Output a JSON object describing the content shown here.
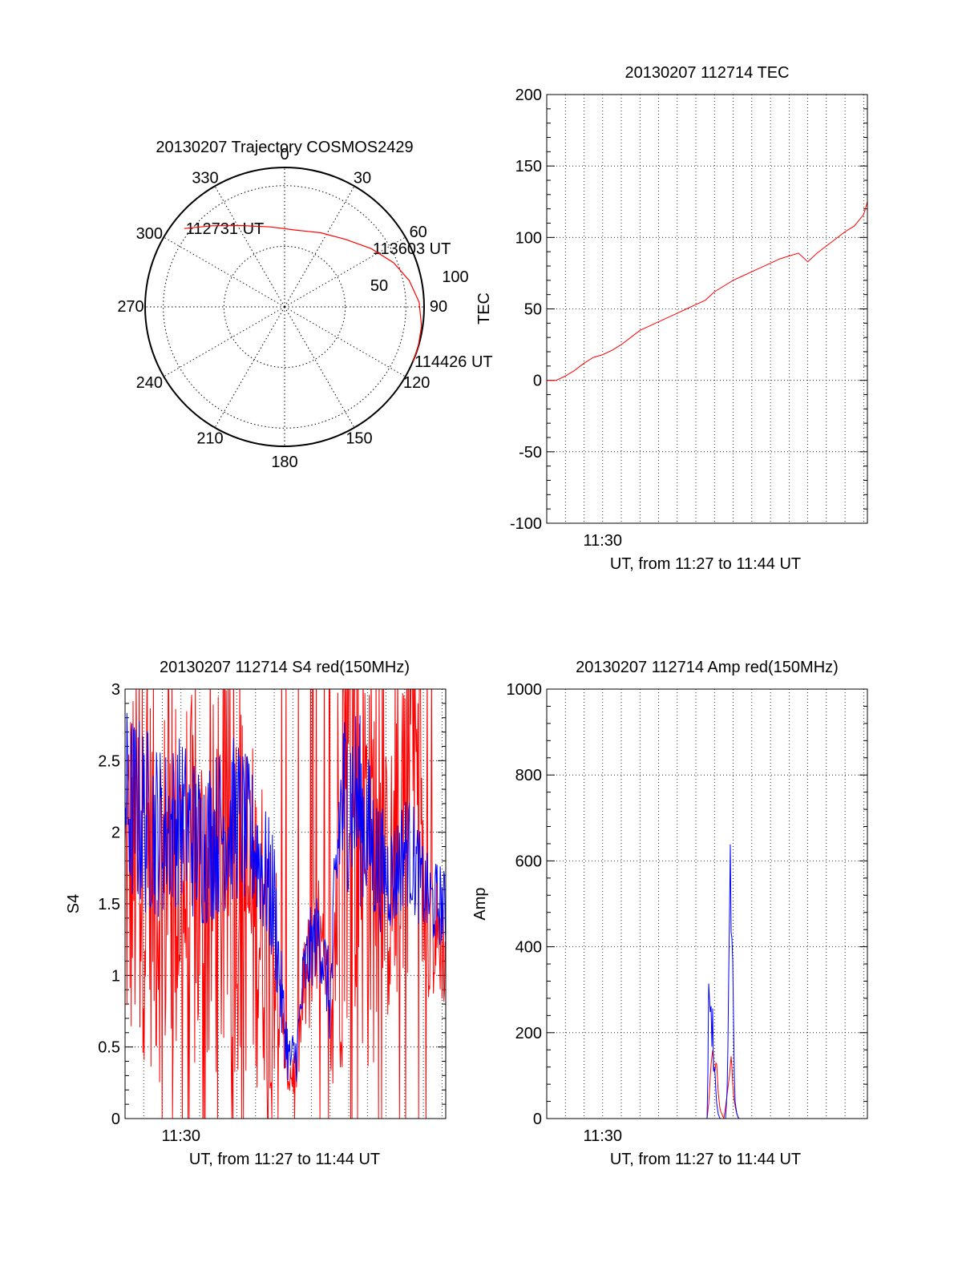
{
  "colors": {
    "series_red": "#ff0000",
    "series_blue": "#0000ff",
    "axis": "#000000"
  },
  "chart_data": [
    {
      "type": "polar",
      "title": "20130207 Trajectory COSMOS2429",
      "azimuth_labels": [
        "0",
        "30",
        "60",
        "90",
        "120",
        "150",
        "180",
        "210",
        "240",
        "270",
        "300",
        "330"
      ],
      "radius_labels": [
        "50",
        "100"
      ],
      "elevation_rings": [
        50,
        100
      ],
      "trajectory_color": "#ff0000",
      "trajectory": [
        {
          "az": 308,
          "r": 105
        },
        {
          "az": 318,
          "r": 90
        },
        {
          "az": 332,
          "r": 76
        },
        {
          "az": 350,
          "r": 67
        },
        {
          "az": 8,
          "r": 64
        },
        {
          "az": 26,
          "r": 68
        },
        {
          "az": 42,
          "r": 75
        },
        {
          "az": 56,
          "r": 86
        },
        {
          "az": 68,
          "r": 97
        },
        {
          "az": 78,
          "r": 105
        },
        {
          "az": 88,
          "r": 111
        },
        {
          "az": 98,
          "r": 114
        },
        {
          "az": 107,
          "r": 115
        },
        {
          "az": 113,
          "r": 115
        }
      ],
      "annotations": [
        {
          "text": "112731 UT",
          "az": 308,
          "r": 105
        },
        {
          "text": "113603 UT",
          "az": 56,
          "r": 86
        },
        {
          "text": "114426 UT",
          "az": 113,
          "r": 115
        }
      ]
    },
    {
      "type": "line",
      "title": "20130207 112714 TEC",
      "ylabel": "TEC",
      "xlabel": "UT, from 11:27 to 11:44 UT",
      "xlim": [
        0,
        17.2
      ],
      "ylim": [
        -100,
        200
      ],
      "yticks": [
        "-100",
        "-50",
        "0",
        "50",
        "100",
        "150",
        "200"
      ],
      "yticks_values": [
        -100,
        -50,
        0,
        50,
        100,
        150,
        200
      ],
      "xtick_labels": [
        {
          "label": "11:30",
          "at": 3
        }
      ],
      "grid": true,
      "series": [
        {
          "color": "#ff0000",
          "x": [
            0,
            0.5,
            1,
            1.5,
            2,
            2.5,
            3,
            3.5,
            4,
            4.5,
            5,
            5.5,
            6,
            6.5,
            7,
            7.5,
            8,
            8.5,
            9,
            9.5,
            10,
            10.5,
            11,
            11.5,
            12,
            12.5,
            13,
            13.5,
            14,
            14.5,
            15,
            15.5,
            16,
            16.5,
            17,
            17.2
          ],
          "y": [
            0,
            0,
            3,
            7,
            12,
            16,
            18,
            21,
            25,
            30,
            35,
            38,
            41,
            44,
            47,
            50,
            53,
            56,
            62,
            66,
            70,
            73,
            76,
            79,
            82,
            85,
            87,
            89,
            83,
            89,
            94,
            99,
            104,
            108,
            116,
            125
          ]
        }
      ]
    },
    {
      "type": "line",
      "title": "20130207 112714 S4 red(150MHz)",
      "ylabel": "S4",
      "xlabel": "UT, from 11:27 to 11:44 UT",
      "xlim": [
        0,
        17.2
      ],
      "ylim": [
        0,
        3
      ],
      "yticks": [
        "0",
        "0.5",
        "1",
        "1.5",
        "2",
        "2.5",
        "3"
      ],
      "yticks_values": [
        0,
        0.5,
        1,
        1.5,
        2,
        2.5,
        3
      ],
      "xtick_labels": [
        {
          "label": "11:30",
          "at": 3
        }
      ],
      "grid": true,
      "series": [
        {
          "color": "#ff0000",
          "noise": true,
          "x": [
            0,
            1,
            2,
            3,
            4,
            5,
            6,
            7,
            8,
            8.4,
            8.8,
            9.2,
            9.6,
            10,
            10.4,
            10.8,
            11,
            11.5,
            12,
            12.5,
            13,
            13.5,
            14,
            14.5,
            15,
            15.5,
            16,
            16.5,
            17,
            17.2
          ],
          "y": [
            1.7,
            1.8,
            1.6,
            1.7,
            1.5,
            1.6,
            1.7,
            1.4,
            1.2,
            0.6,
            0.3,
            0.35,
            0.9,
            1.1,
            1.2,
            0.9,
            0.7,
            2.0,
            2.4,
            2.3,
            2.0,
            1.8,
            1.6,
            1.7,
            2.5,
            2.8,
            1.5,
            1.3,
            1.2,
            1.1
          ],
          "amp": [
            1.4,
            1.4,
            1.4,
            1.4,
            1.4,
            1.4,
            1.4,
            1.2,
            1.0,
            0.3,
            0.2,
            0.2,
            0.4,
            0.5,
            0.5,
            0.4,
            0.5,
            1.8,
            1.8,
            1.8,
            1.8,
            1.4,
            1.0,
            1.0,
            1.6,
            1.6,
            0.6,
            0.5,
            0.4,
            0.4
          ]
        },
        {
          "color": "#0000ff",
          "noise": true,
          "x": [
            0,
            1,
            2,
            3,
            4,
            5,
            6,
            7,
            8,
            8.4,
            8.8,
            9.2,
            9.6,
            10,
            10.4,
            10.8,
            11,
            11.5,
            12,
            12.5,
            13,
            13.5,
            14,
            14.5,
            15,
            15.5,
            16,
            16.5,
            17,
            17.2
          ],
          "y": [
            2.2,
            2.1,
            2.0,
            2.1,
            1.9,
            2.0,
            2.1,
            1.9,
            1.5,
            0.8,
            0.4,
            0.45,
            1.0,
            1.2,
            1.3,
            1.0,
            0.8,
            2.1,
            2.3,
            2.2,
            2.0,
            1.8,
            1.7,
            1.7,
            1.9,
            1.8,
            1.6,
            1.5,
            1.5,
            1.4
          ],
          "amp": [
            0.7,
            0.7,
            0.6,
            0.6,
            0.6,
            0.6,
            0.6,
            0.5,
            0.5,
            0.3,
            0.2,
            0.2,
            0.3,
            0.3,
            0.3,
            0.3,
            0.3,
            0.7,
            0.7,
            0.7,
            0.6,
            0.5,
            0.4,
            0.4,
            0.4,
            0.4,
            0.3,
            0.3,
            0.3,
            0.3
          ]
        }
      ]
    },
    {
      "type": "line",
      "title": "20130207 112714 Amp red(150MHz)",
      "ylabel": "Amp",
      "xlabel": "UT, from 11:27 to 11:44 UT",
      "xlim": [
        0,
        17.2
      ],
      "ylim": [
        0,
        1000
      ],
      "yticks": [
        "0",
        "200",
        "400",
        "600",
        "800",
        "1000"
      ],
      "yticks_values": [
        0,
        200,
        400,
        600,
        800,
        1000
      ],
      "xtick_labels": [
        {
          "label": "11:30",
          "at": 3
        }
      ],
      "grid": true,
      "series": [
        {
          "color": "#ff0000",
          "x": [
            0,
            8.6,
            8.7,
            8.8,
            8.9,
            9.0,
            9.1,
            9.2,
            9.3,
            9.5,
            9.6,
            9.8,
            9.9,
            10.0,
            10.1,
            10.2,
            10.3,
            10.5,
            17.2
          ],
          "y": [
            0,
            0,
            40,
            120,
            160,
            100,
            140,
            60,
            20,
            0,
            30,
            100,
            150,
            60,
            30,
            10,
            0,
            0,
            0
          ]
        },
        {
          "color": "#0000ff",
          "x": [
            0,
            8.6,
            8.65,
            8.7,
            8.75,
            8.8,
            8.85,
            8.9,
            8.95,
            9.0,
            9.1,
            9.2,
            9.3,
            9.4,
            9.5,
            9.6,
            9.7,
            9.75,
            9.8,
            9.85,
            9.9,
            9.95,
            10.0,
            10.05,
            10.1,
            10.2,
            10.3,
            10.5,
            17.2
          ],
          "y": [
            0,
            0,
            120,
            390,
            200,
            310,
            150,
            260,
            90,
            130,
            40,
            10,
            0,
            0,
            0,
            0,
            90,
            300,
            460,
            650,
            380,
            440,
            300,
            120,
            40,
            10,
            0,
            0,
            0
          ]
        }
      ]
    }
  ]
}
